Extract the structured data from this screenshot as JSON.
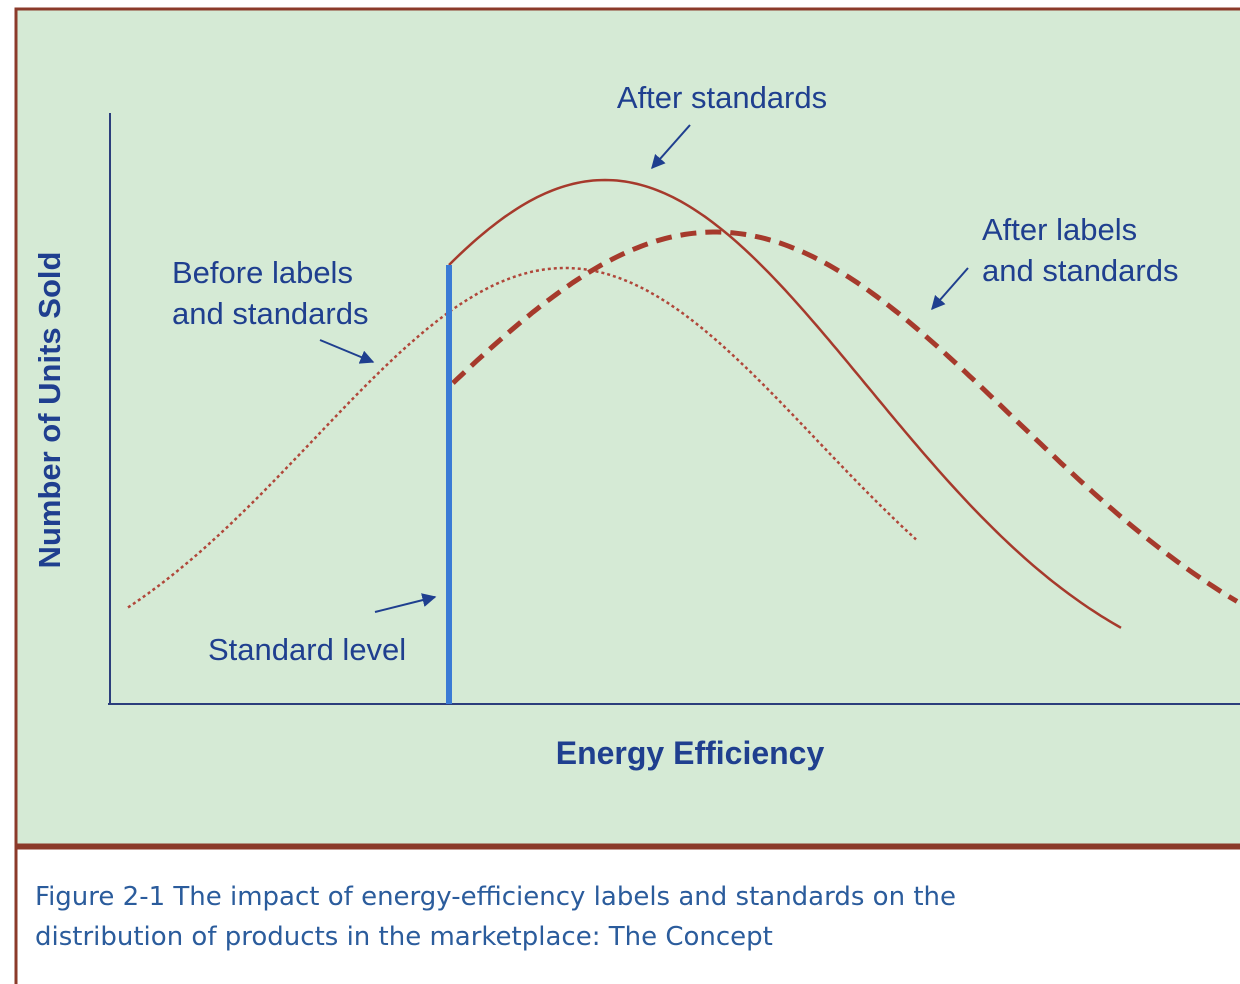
{
  "figure": {
    "y_axis_label": "Number of Units Sold",
    "x_axis_label": "Energy Efficiency",
    "annotations": {
      "after_standards": "After standards",
      "after_labels_and_standards": [
        "After labels",
        "and standards"
      ],
      "before_labels_and_standards": [
        "Before labels",
        "and standards"
      ],
      "standard_level": "Standard level"
    },
    "caption": [
      "Figure 2-1  The impact of energy-efficiency labels and standards on the",
      "distribution of products in the marketplace: The Concept"
    ]
  }
}
